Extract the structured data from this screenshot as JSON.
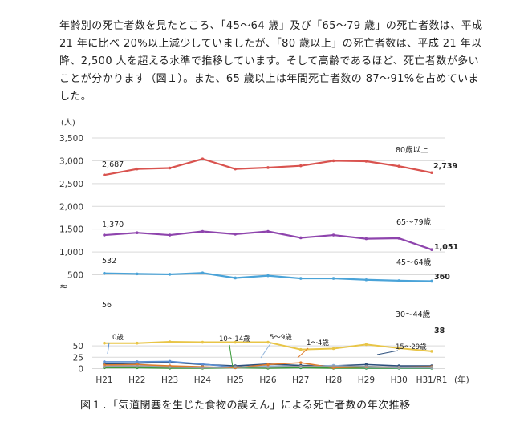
{
  "paragraph": "年齢別の死亡者数を見たところ、「45～64 歳」及び「65～79 歳」の死亡者数は、平成 21 年に比べ 20%以上減少していましたが、「80 歳以上」の死亡者数は、平成 21 年以降、2,500 人を超える水準で推移しています。そして高齢であるほど、死亡者数が多いことが分かります（図１）。また、65 歳以上は年間死亡者数の 87～91%を占めていました。",
  "caption": "図１．「気道閉塞を生じた食物の誤えん」による死亡者数の年次推移",
  "chart_data": {
    "type": "line",
    "unit_label": "(人)",
    "x_unit_label": "(年)",
    "categories": [
      "H21",
      "H22",
      "H23",
      "H24",
      "H25",
      "H26",
      "H27",
      "H28",
      "H29",
      "H30",
      "H31/R1"
    ],
    "upper_panel": {
      "ylim": [
        400,
        3500
      ],
      "yticks": [
        "500",
        "1,000",
        "1,500",
        "2,000",
        "2,500",
        "3,000",
        "3,500"
      ],
      "ytick_values": [
        500,
        1000,
        1500,
        2000,
        2500,
        3000,
        3500
      ],
      "series": [
        {
          "name": "80歳以上",
          "color": "#d9534f",
          "values": [
            2687,
            2820,
            2840,
            3040,
            2820,
            2850,
            2890,
            3000,
            2990,
            2880,
            2739
          ],
          "first_label": "2,687",
          "last_label": "2,739"
        },
        {
          "name": "65～79歳",
          "color": "#8e44ad",
          "values": [
            1370,
            1420,
            1370,
            1450,
            1390,
            1450,
            1310,
            1370,
            1290,
            1300,
            1051
          ],
          "first_label": "1,370",
          "last_label": "1,051"
        },
        {
          "name": "45～64歳",
          "color": "#4aa3d8",
          "values": [
            532,
            520,
            510,
            540,
            430,
            480,
            420,
            420,
            390,
            370,
            360
          ],
          "first_label": "532",
          "last_label": "360"
        }
      ]
    },
    "lower_panel": {
      "ylim": [
        0,
        65
      ],
      "yticks": [
        "0",
        "25",
        "50"
      ],
      "ytick_values": [
        0,
        25,
        50
      ],
      "series": [
        {
          "name": "30～44歳",
          "color": "#e8c547",
          "values": [
            56,
            56,
            59,
            58,
            58,
            58,
            42,
            44,
            53,
            45,
            38
          ],
          "first_label": "56",
          "last_label": "38"
        },
        {
          "name": "15～29歳",
          "color": "#2c4f7c",
          "values": [
            10,
            12,
            14,
            9,
            6,
            10,
            7,
            6,
            9,
            6,
            6
          ]
        },
        {
          "name": "0歳",
          "color": "#5b8fd4",
          "values": [
            15,
            15,
            16,
            10,
            3,
            2,
            2,
            3,
            1,
            1,
            1
          ]
        },
        {
          "name": "10～14歳",
          "color": "#3a9b3a",
          "values": [
            2,
            2,
            1,
            1,
            2,
            1,
            2,
            1,
            1,
            1,
            1
          ]
        },
        {
          "name": "5～9歳",
          "color": "#8fb2d9",
          "values": [
            5,
            8,
            4,
            3,
            2,
            6,
            4,
            7,
            3,
            2,
            2
          ]
        },
        {
          "name": "1～4歳",
          "color": "#e07b2a",
          "values": [
            8,
            9,
            6,
            4,
            2,
            9,
            13,
            2,
            4,
            3,
            4
          ]
        },
        {
          "name": "",
          "color": "#999999",
          "values": [
            4,
            5,
            3,
            2,
            4,
            3,
            5,
            5,
            5,
            3,
            3
          ]
        }
      ]
    }
  }
}
